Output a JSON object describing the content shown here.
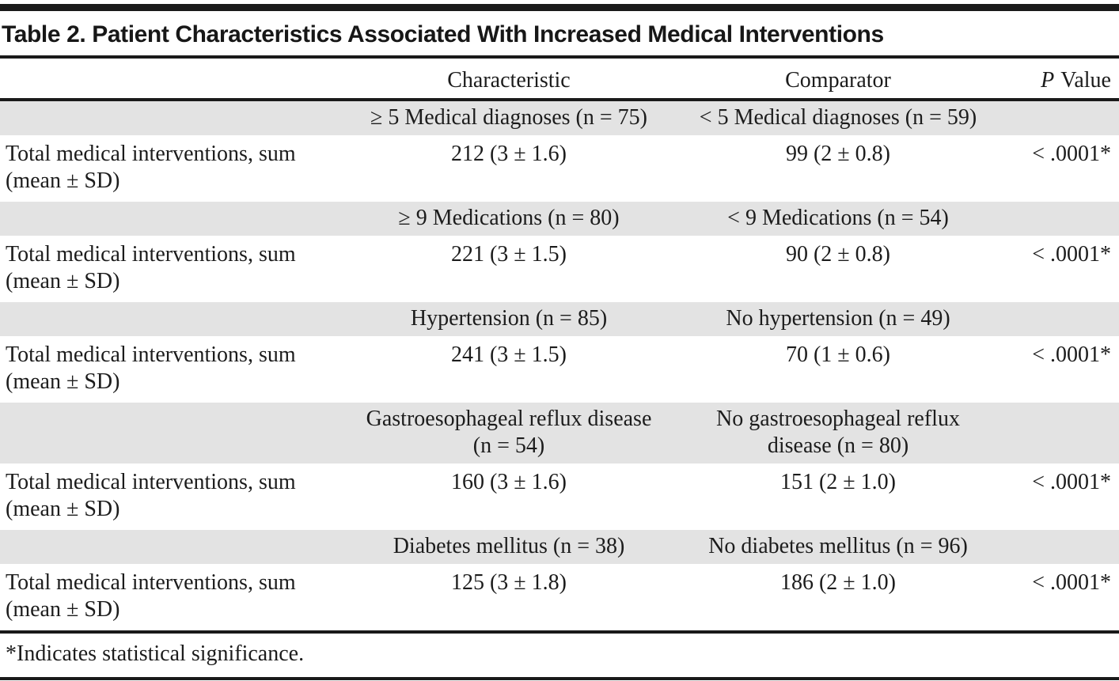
{
  "title": "Table 2. Patient Characteristics Associated With Increased Medical Interventions",
  "columns": {
    "characteristic": "Characteristic",
    "comparator": "Comparator",
    "p_italic": "P",
    "p_rest": "Value"
  },
  "groups": [
    {
      "characteristic": "≥ 5 Medical diagnoses (n = 75)",
      "comparator": "< 5 Medical diagnoses (n = 59)",
      "row_label": "Total medical interventions, sum (mean ± SD)",
      "characteristic_value": "212 (3 ± 1.6)",
      "comparator_value": "99 (2 ± 0.8)",
      "p_value": "< .0001*"
    },
    {
      "characteristic": "≥ 9 Medications (n = 80)",
      "comparator": "< 9 Medications (n = 54)",
      "row_label": "Total medical interventions, sum (mean ± SD)",
      "characteristic_value": "221 (3 ± 1.5)",
      "comparator_value": "90 (2 ± 0.8)",
      "p_value": "< .0001*"
    },
    {
      "characteristic": "Hypertension (n = 85)",
      "comparator": "No hypertension (n = 49)",
      "row_label": "Total medical interventions, sum (mean ± SD)",
      "characteristic_value": "241 (3 ± 1.5)",
      "comparator_value": "70 (1 ± 0.6)",
      "p_value": "< .0001*"
    },
    {
      "characteristic": "Gastroesophageal reflux disease (n = 54)",
      "comparator": "No gastroesophageal reflux disease (n = 80)",
      "row_label": "Total medical interventions, sum (mean ± SD)",
      "characteristic_value": "160 (3 ± 1.6)",
      "comparator_value": "151 (2 ± 1.0)",
      "p_value": "< .0001*"
    },
    {
      "characteristic": "Diabetes mellitus (n = 38)",
      "comparator": "No diabetes mellitus (n = 96)",
      "row_label": "Total medical interventions, sum (mean ± SD)",
      "characteristic_value": "125 (3 ± 1.8)",
      "comparator_value": "186 (2 ± 1.0)",
      "p_value": "< .0001*"
    }
  ],
  "footnote": "*Indicates statistical significance.",
  "colors": {
    "rule": "#1a1a1a",
    "band": "#e3e3e3",
    "text": "#1c1c1c"
  }
}
